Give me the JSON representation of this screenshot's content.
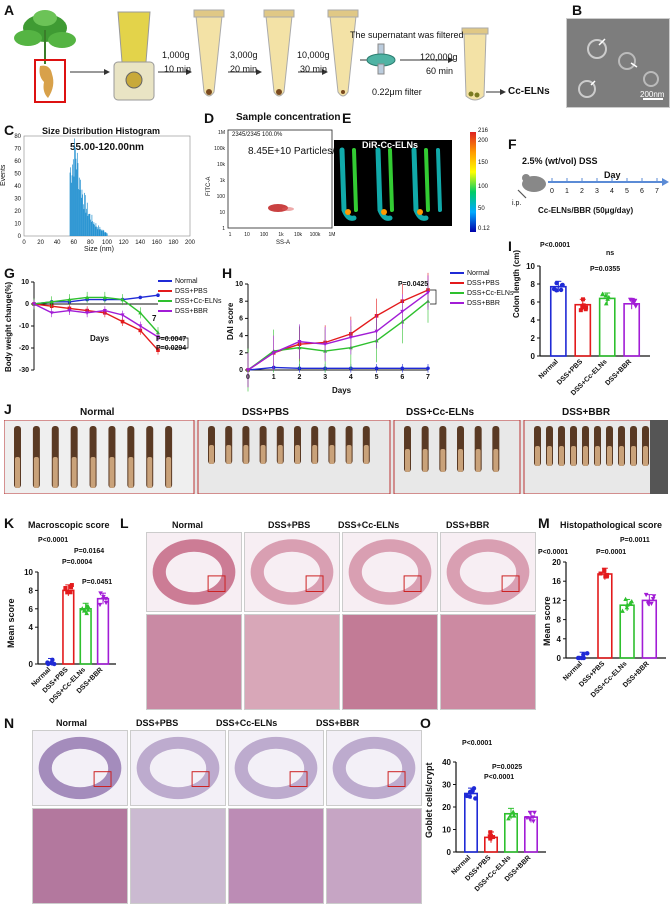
{
  "panels": {
    "A": "A",
    "B": "B",
    "C": "C",
    "D": "D",
    "E": "E",
    "F": "F",
    "G": "G",
    "H": "H",
    "I": "I",
    "J": "J",
    "K": "K",
    "L": "L",
    "M": "M",
    "N": "N",
    "O": "O"
  },
  "panelA": {
    "steps": [
      {
        "speed": "1,000g",
        "time": "10 min"
      },
      {
        "speed": "3,000g",
        "time": "20 min"
      },
      {
        "speed": "10,000g",
        "time": "30 min"
      },
      {
        "speed": "120,000g",
        "time": "60 min"
      }
    ],
    "filter_note": "The supernatant was filtered",
    "filter_label": "0.22μm filter",
    "product": "Cc-ELNs"
  },
  "panelB": {
    "scale": "200nm"
  },
  "panelC": {
    "title": "Size Distribution Histogram",
    "range_label": "55.00-120.00nm",
    "xlabel": "Size (nm)",
    "ylabel": "Events",
    "yticks": [
      "0",
      "10",
      "20",
      "30",
      "40",
      "50",
      "60",
      "70",
      "80"
    ],
    "xticks": [
      "0",
      "20",
      "40",
      "60",
      "80",
      "100",
      "120",
      "140",
      "160",
      "180",
      "200"
    ]
  },
  "panelD": {
    "title": "Sample concentration",
    "concentration": "8.45E+10 Particles/mL",
    "gate": "2345/2345  100.0%",
    "xlabel": "SS-A",
    "ylabel": "FITC-A",
    "yticks": [
      "1M",
      "100k",
      "10k",
      "1k",
      "100",
      "10",
      "1"
    ],
    "xticks": [
      "1",
      "10",
      "100",
      "1k",
      "10k",
      "100k",
      "1M"
    ]
  },
  "panelE": {
    "title": "DiR-Cc-ELNs",
    "scale": [
      "216",
      "200",
      "150",
      "100",
      "50",
      "0.12"
    ]
  },
  "panelF": {
    "dss": "2.5% (wt/vol) DSS",
    "day_label": "Day",
    "days": [
      "0",
      "1",
      "2",
      "3",
      "4",
      "5",
      "6",
      "7"
    ],
    "ip": "i.p.",
    "treatment": "Cc-ELNs/BBR (50μg/day)"
  },
  "panelG": {
    "ylabel": "Body weight change(%)",
    "xlabel": "Days",
    "x_end": "7",
    "yticks": [
      "10",
      "0",
      "-10",
      "-20",
      "-30"
    ],
    "p1": "P=0.0047",
    "p2": "P=0.0294",
    "legend": [
      "Normal",
      "DSS+PBS",
      "DSS+Cc-ELNs",
      "DSS+BBR"
    ]
  },
  "panelH": {
    "ylabel": "DAI score",
    "xlabel": "Days",
    "p": "P=0.0425",
    "yticks": [
      "0",
      "2",
      "4",
      "6",
      "8",
      "10"
    ],
    "xticks": [
      "0",
      "1",
      "2",
      "3",
      "4",
      "5",
      "6",
      "7"
    ],
    "legend": [
      "Normal",
      "DSS+PBS",
      "DSS+Cc-ELNs",
      "DSS+BBR"
    ]
  },
  "panelI": {
    "ylabel": "Colon length (cm)",
    "yticks": [
      "0",
      "2",
      "4",
      "6",
      "8",
      "10"
    ],
    "p1": "P<0.0001",
    "ns": "ns",
    "p2": "P=0.0355",
    "groups": [
      "Normal",
      "DSS+PBS",
      "DSS+Cc-ELNs",
      "DSS+BBR"
    ]
  },
  "panelJ": {
    "groups": [
      "Normal",
      "DSS+PBS",
      "DSS+Cc-ELNs",
      "DSS+BBR"
    ]
  },
  "panelK": {
    "title": "Macroscopic score",
    "ylabel": "Mean score",
    "yticks": [
      "0",
      "4",
      "6",
      "8",
      "10"
    ],
    "p1": "P<0.0001",
    "p2": "P=0.0164",
    "p3": "P=0.0004",
    "p4": "P=0.0451",
    "groups": [
      "Normal",
      "DSS+PBS",
      "DSS+Cc-ELNs",
      "DSS+BBR"
    ]
  },
  "panelL": {
    "groups": [
      "Normal",
      "DSS+PBS",
      "DSS+Cc-ELNs",
      "DSS+BBR"
    ]
  },
  "panelM": {
    "title": "Histopathological score",
    "ylabel": "Mean score",
    "yticks": [
      "0",
      "4",
      "8",
      "12",
      "16",
      "20"
    ],
    "p1": "P<0.0001",
    "p2": "P=0.0001",
    "p3": "P=0.0011",
    "groups": [
      "Normal",
      "DSS+PBS",
      "DSS+Cc-ELNs",
      "DSS+BBR"
    ]
  },
  "panelN": {
    "groups": [
      "Normal",
      "DSS+PBS",
      "DSS+Cc-ELNs",
      "DSS+BBR"
    ]
  },
  "panelO": {
    "ylabel": "Goblet cells/crypt",
    "yticks": [
      "0",
      "10",
      "20",
      "30",
      "40"
    ],
    "p1": "P<0.0001",
    "p2": "P=0.0025",
    "p3": "P<0.0001",
    "groups": [
      "Normal",
      "DSS+PBS",
      "DSS+Cc-ELNs",
      "DSS+BBR"
    ]
  },
  "colors": {
    "normal": "#1f2ad6",
    "pbs": "#e31a1c",
    "ccelns": "#2ec02e",
    "bbr": "#a21cd6",
    "hist": "#1f8fd0"
  },
  "chart_data": [
    {
      "type": "bar",
      "title": "Size Distribution Histogram",
      "xlabel": "Size (nm)",
      "ylabel": "Events",
      "xlim": [
        0,
        200
      ],
      "ylim": [
        0,
        80
      ]
    },
    {
      "type": "line",
      "panel": "G",
      "ylabel": "Body weight change(%)",
      "xlabel": "Days",
      "ylim": [
        -30,
        10
      ],
      "x": [
        0,
        1,
        2,
        3,
        4,
        5,
        6,
        7
      ],
      "series": [
        {
          "name": "Normal",
          "values": [
            0,
            1,
            1,
            2,
            2,
            2,
            3,
            4
          ]
        },
        {
          "name": "DSS+PBS",
          "values": [
            0,
            -1,
            -2,
            -3,
            -4,
            -8,
            -12,
            -21
          ]
        },
        {
          "name": "DSS+Cc-ELNs",
          "values": [
            0,
            1,
            2,
            3,
            3,
            2,
            -4,
            -13
          ]
        },
        {
          "name": "DSS+BBR",
          "values": [
            0,
            -4,
            -3,
            -4,
            -3,
            -5,
            -10,
            -15
          ]
        }
      ]
    },
    {
      "type": "line",
      "panel": "H",
      "ylabel": "DAI score",
      "xlabel": "Days",
      "ylim": [
        0,
        10
      ],
      "x": [
        0,
        1,
        2,
        3,
        4,
        5,
        6,
        7
      ],
      "series": [
        {
          "name": "Normal",
          "values": [
            0,
            0.3,
            0.2,
            0.2,
            0.2,
            0.2,
            0.2,
            0.2
          ]
        },
        {
          "name": "DSS+PBS",
          "values": [
            0,
            2,
            3,
            3.2,
            4.2,
            6.3,
            8,
            9.3
          ]
        },
        {
          "name": "DSS+Cc-ELNs",
          "values": [
            0,
            2.2,
            2.6,
            2.2,
            2.6,
            3.4,
            5.6,
            8
          ]
        },
        {
          "name": "DSS+BBR",
          "values": [
            0,
            2,
            3.3,
            3,
            3.8,
            4.5,
            6.8,
            9
          ]
        }
      ]
    },
    {
      "type": "bar",
      "panel": "I",
      "ylabel": "Colon length (cm)",
      "ylim": [
        0,
        10
      ],
      "categories": [
        "Normal",
        "DSS+PBS",
        "DSS+Cc-ELNs",
        "DSS+BBR"
      ],
      "values": [
        7.7,
        5.7,
        6.4,
        5.8
      ]
    },
    {
      "type": "bar",
      "panel": "K",
      "ylabel": "Mean score",
      "categories": [
        "Normal",
        "DSS+PBS",
        "DSS+Cc-ELNs",
        "DSS+BBR"
      ],
      "values": [
        0,
        8,
        6,
        7.1
      ]
    },
    {
      "type": "bar",
      "panel": "M",
      "ylabel": "Mean score",
      "categories": [
        "Normal",
        "DSS+PBS",
        "DSS+Cc-ELNs",
        "DSS+BBR"
      ],
      "values": [
        0,
        17.5,
        11,
        12
      ]
    },
    {
      "type": "bar",
      "panel": "O",
      "ylabel": "Goblet cells/crypt",
      "ylim": [
        0,
        40
      ],
      "categories": [
        "Normal",
        "DSS+PBS",
        "DSS+Cc-ELNs",
        "DSS+BBR"
      ],
      "values": [
        26,
        6.5,
        17,
        15.5
      ]
    }
  ]
}
